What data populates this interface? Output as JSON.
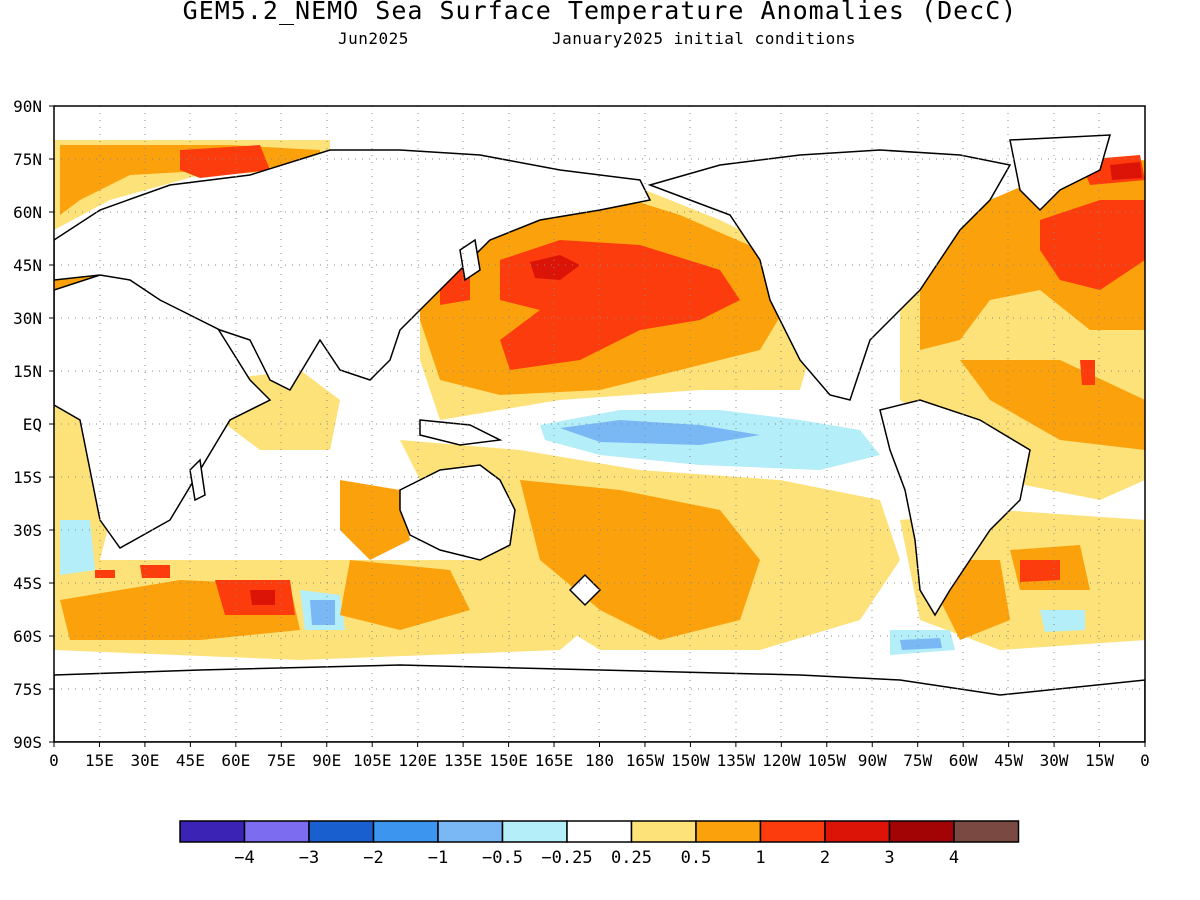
{
  "title": "GEM5.2_NEMO Sea Surface Temperature Anomalies (DecC)",
  "subtitle_left": "Jun2025",
  "subtitle_right": "January2025 initial conditions",
  "lat_ticks": [
    "90N",
    "75N",
    "60N",
    "45N",
    "30N",
    "15N",
    "EQ",
    "15S",
    "30S",
    "45S",
    "60S",
    "75S",
    "90S"
  ],
  "lon_ticks": [
    "0",
    "15E",
    "30E",
    "45E",
    "60E",
    "75E",
    "90E",
    "105E",
    "120E",
    "135E",
    "150E",
    "165E",
    "180",
    "165W",
    "150W",
    "135W",
    "120W",
    "105W",
    "90W",
    "75W",
    "60W",
    "45W",
    "30W",
    "15W",
    "0"
  ],
  "legend": {
    "colors": [
      "#3a23b5",
      "#7b6cf0",
      "#1a5fd0",
      "#3c96f0",
      "#7ab8f5",
      "#b4eef8",
      "#ffffff",
      "#fde27a",
      "#fba10c",
      "#fc3c0c",
      "#dc1408",
      "#a20406",
      "#7a4a42"
    ],
    "labels": [
      "−4",
      "−3",
      "−2",
      "−1",
      "−0.5",
      "−0.25",
      "0.25",
      "0.5",
      "1",
      "2",
      "3",
      "4"
    ]
  }
}
